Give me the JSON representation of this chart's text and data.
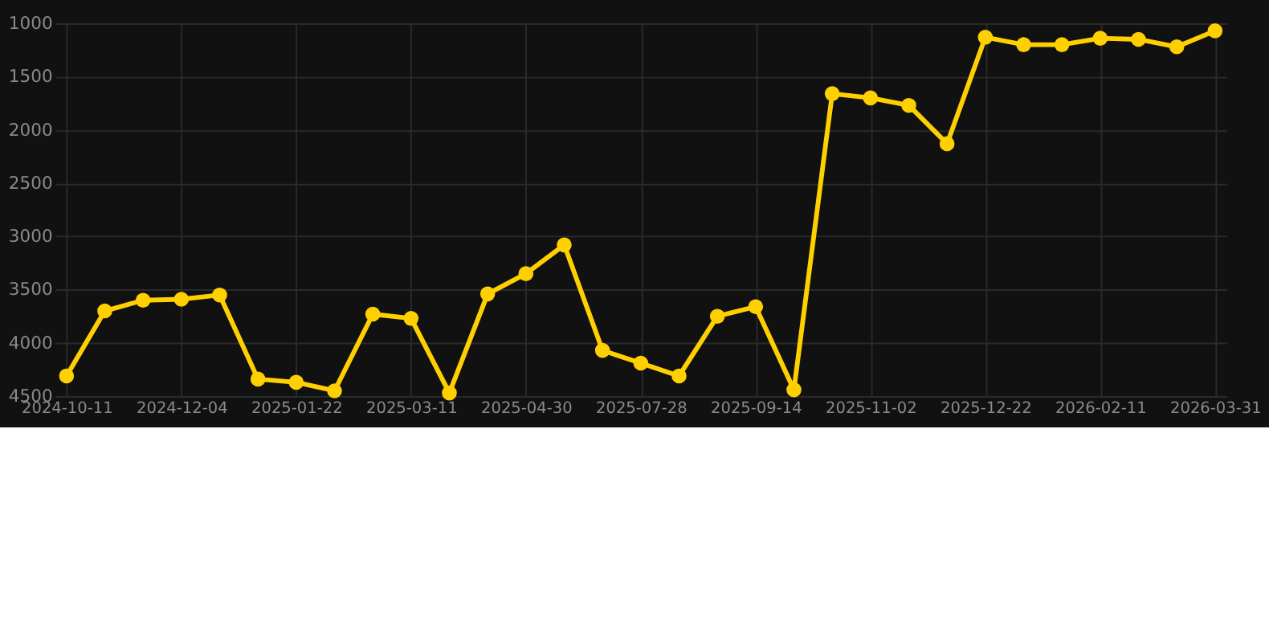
{
  "chart_data": {
    "type": "line",
    "categories": [
      "2024-10-11",
      null,
      null,
      "2024-12-04",
      null,
      null,
      "2025-01-22",
      null,
      null,
      "2025-03-11",
      null,
      null,
      "2025-04-30",
      null,
      null,
      "2025-07-28",
      null,
      null,
      "2025-09-14",
      null,
      null,
      "2025-11-02",
      null,
      null,
      "2025-12-22",
      null,
      null,
      "2026-02-11",
      null,
      null,
      "2026-03-31"
    ],
    "series": [
      {
        "color": "#ffd000",
        "values": [
          4310,
          3700,
          3600,
          3590,
          3550,
          4340,
          4370,
          4450,
          3730,
          3770,
          4470,
          3540,
          3350,
          3080,
          4070,
          4190,
          4310,
          3750,
          3660,
          4440,
          1660,
          1700,
          1770,
          2130,
          1130,
          1200,
          1200,
          1140,
          1150,
          1220,
          1070
        ]
      }
    ],
    "ylim": [
      4500,
      1000
    ],
    "yticks": [
      1000,
      1500,
      2000,
      2500,
      3000,
      3500,
      4000,
      4500
    ],
    "grid": true,
    "marker": "circle",
    "line_style": "solid",
    "legend": false
  }
}
